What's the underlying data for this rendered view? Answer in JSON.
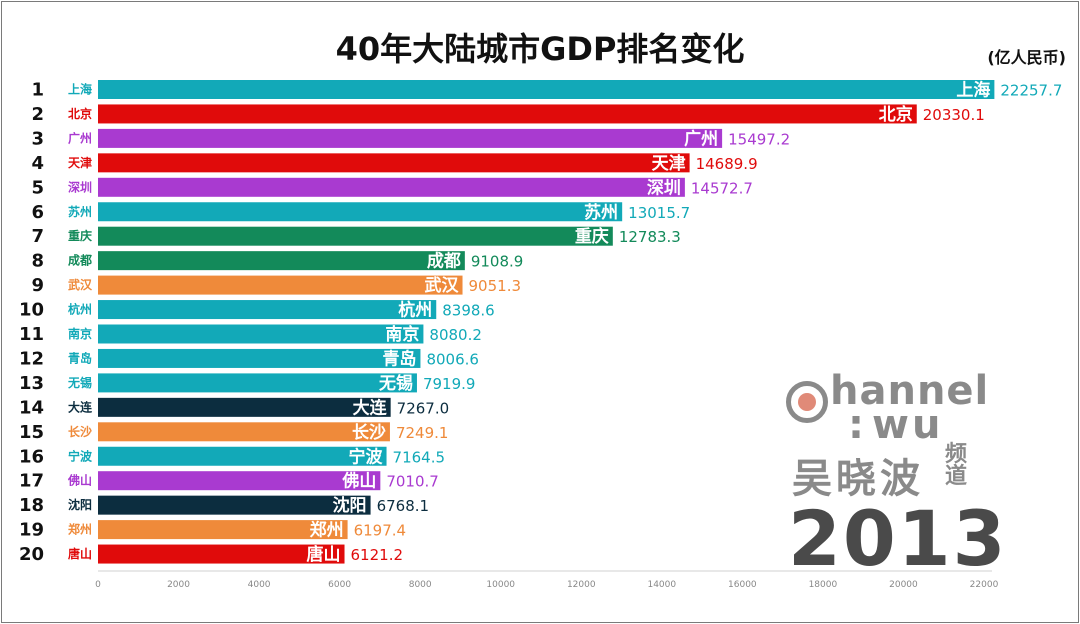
{
  "header": {
    "title": "40年大陆城市GDP排名变化",
    "unit": "(亿人民币)"
  },
  "watermark": {
    "brand_en": "hannel",
    "brand_wu": "wu",
    "brand_colon": ":",
    "brand_cn": "吴晓波",
    "brand_pindao": "频道",
    "year": "2013"
  },
  "colors": {
    "teal": "#12a9b8",
    "red": "#e00b0b",
    "purple": "#a93ad0",
    "green": "#138a5a",
    "orange": "#ef8a3a",
    "navy": "#0c2d3f"
  },
  "chart_data": {
    "type": "bar",
    "orientation": "horizontal",
    "title": "40年大陆城市GDP排名变化",
    "unit": "(亿人民币)",
    "xlim": [
      0,
      22000
    ],
    "ticks": [
      0,
      2000,
      4000,
      6000,
      8000,
      10000,
      12000,
      14000,
      16000,
      18000,
      20000,
      22000
    ],
    "grid": false,
    "ranks": [
      "1",
      "2",
      "3",
      "4",
      "5",
      "6",
      "7",
      "8",
      "9",
      "10",
      "11",
      "12",
      "13",
      "14",
      "15",
      "16",
      "17",
      "18",
      "19",
      "20"
    ],
    "categories": [
      "上海",
      "北京",
      "广州",
      "天津",
      "深圳",
      "苏州",
      "重庆",
      "成都",
      "武汉",
      "杭州",
      "南京",
      "青岛",
      "无锡",
      "大连",
      "长沙",
      "宁波",
      "佛山",
      "沈阳",
      "郑州",
      "唐山"
    ],
    "values": [
      22257.7,
      20330.1,
      15497.2,
      14689.9,
      14572.7,
      13015.7,
      12783.3,
      9108.9,
      9051.3,
      8398.6,
      8080.2,
      8006.6,
      7919.9,
      7267.0,
      7249.1,
      7164.5,
      7010.7,
      6768.1,
      6197.4,
      6121.2
    ],
    "value_labels": [
      "22257.7",
      "20330.1",
      "15497.2",
      "14689.9",
      "14572.7",
      "13015.7",
      "12783.3",
      "9108.9",
      "9051.3",
      "8398.6",
      "8080.2",
      "8006.6",
      "7919.9",
      "7267.0",
      "7249.1",
      "7164.5",
      "7010.7",
      "6768.1",
      "6197.4",
      "6121.2"
    ],
    "bar_colors": [
      "#12a9b8",
      "#e00b0b",
      "#a93ad0",
      "#e00b0b",
      "#a93ad0",
      "#12a9b8",
      "#138a5a",
      "#138a5a",
      "#ef8a3a",
      "#12a9b8",
      "#12a9b8",
      "#12a9b8",
      "#12a9b8",
      "#0c2d3f",
      "#ef8a3a",
      "#12a9b8",
      "#a93ad0",
      "#0c2d3f",
      "#ef8a3a",
      "#e00b0b"
    ]
  }
}
